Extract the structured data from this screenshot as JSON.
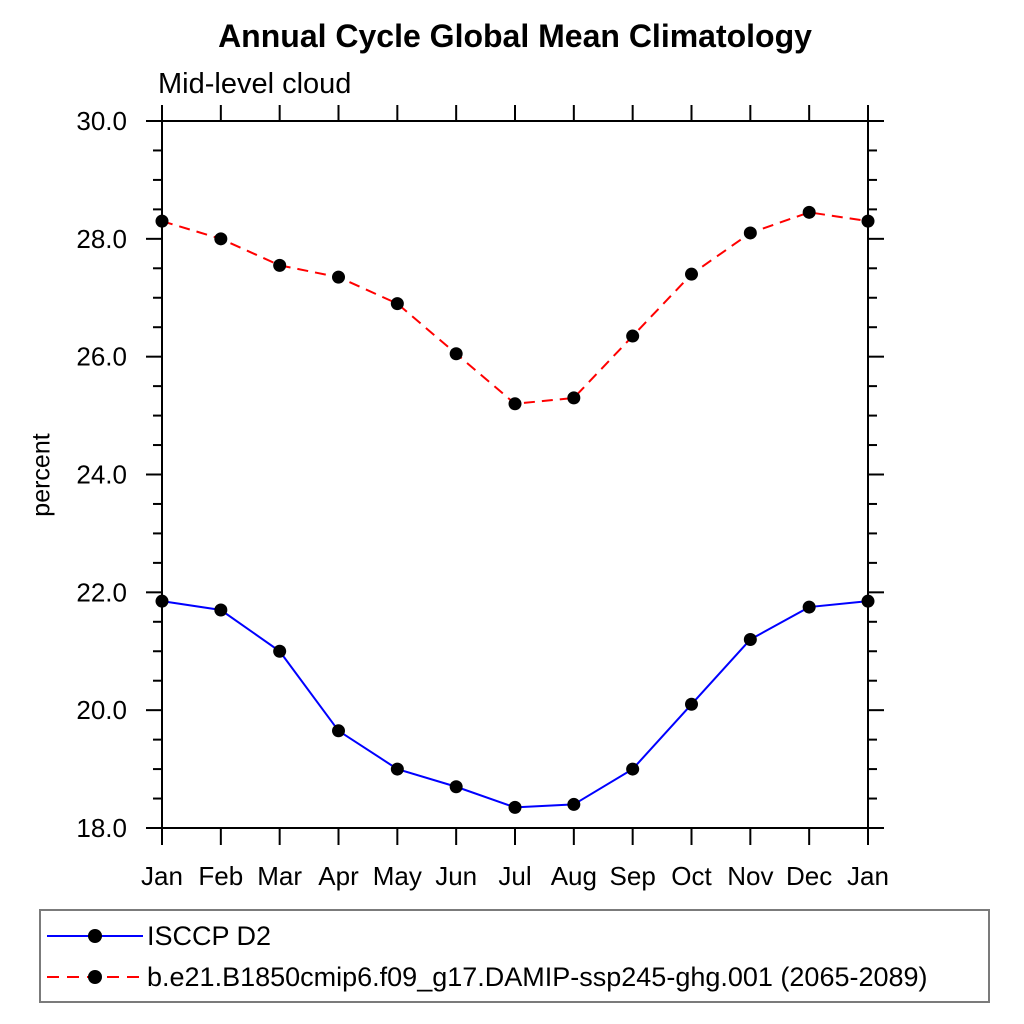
{
  "chart_data": {
    "type": "line",
    "title": "Annual Cycle Global Mean Climatology",
    "subtitle": "Mid-level cloud",
    "ylabel": "percent",
    "xlabel": "",
    "categories": [
      "Jan",
      "Feb",
      "Mar",
      "Apr",
      "May",
      "Jun",
      "Jul",
      "Aug",
      "Sep",
      "Oct",
      "Nov",
      "Dec",
      "Jan"
    ],
    "ylim": [
      18.0,
      30.0
    ],
    "ytick_major_interval": 2.0,
    "ytick_minor_interval": 0.5,
    "grid": false,
    "legend_position": "bottom-left-box",
    "marker": {
      "shape": "circle",
      "color": "#000000",
      "radius": 6.5
    },
    "series": [
      {
        "name": "ISCCP D2",
        "color": "#0000ff",
        "line_style": "solid",
        "values": [
          21.85,
          21.7,
          21.0,
          19.65,
          19.0,
          18.7,
          18.35,
          18.4,
          19.0,
          20.1,
          21.2,
          21.75,
          21.85
        ]
      },
      {
        "name": "b.e21.B1850cmip6.f09_g17.DAMIP-ssp245-ghg.001 (2065-2089)",
        "color": "#ff0000",
        "line_style": "dashed",
        "values": [
          28.3,
          28.0,
          27.55,
          27.35,
          26.9,
          26.05,
          25.2,
          25.3,
          26.35,
          27.4,
          28.1,
          28.45,
          28.3
        ]
      }
    ]
  }
}
